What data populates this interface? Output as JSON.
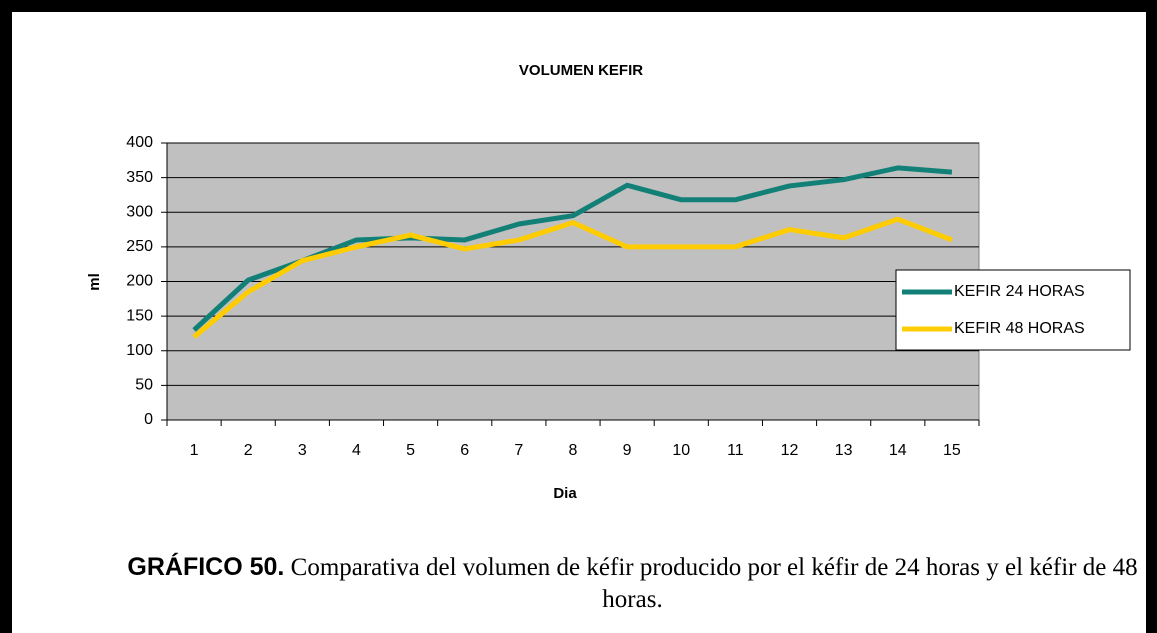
{
  "chart_data": {
    "type": "line",
    "title": "VOLUMEN KEFIR",
    "x_label": "Dia",
    "y_label": "ml",
    "categories": [
      "1",
      "2",
      "3",
      "4",
      "5",
      "6",
      "7",
      "8",
      "9",
      "10",
      "11",
      "12",
      "13",
      "14",
      "15"
    ],
    "series": [
      {
        "name": "KEFIR 24 HORAS",
        "color": "#138078",
        "values": [
          130,
          202,
          230,
          260,
          263,
          260,
          283,
          295,
          339,
          318,
          318,
          338,
          347,
          364,
          358
        ]
      },
      {
        "name": "KEFIR 48 HORAS",
        "color": "#ffcc00",
        "values": [
          120,
          185,
          230,
          250,
          267,
          247,
          260,
          285,
          250,
          250,
          250,
          275,
          263,
          290,
          260
        ]
      }
    ],
    "ylim": [
      0,
      400
    ],
    "yticks": [
      0,
      50,
      100,
      150,
      200,
      250,
      300,
      350,
      400
    ],
    "grid": true,
    "legend": "right"
  },
  "caption": {
    "label": "GRÁFICO 50.",
    "text": "Comparativa del volumen de kéfir producido por el kéfir de 24 horas y el kéfir de 48 horas."
  }
}
